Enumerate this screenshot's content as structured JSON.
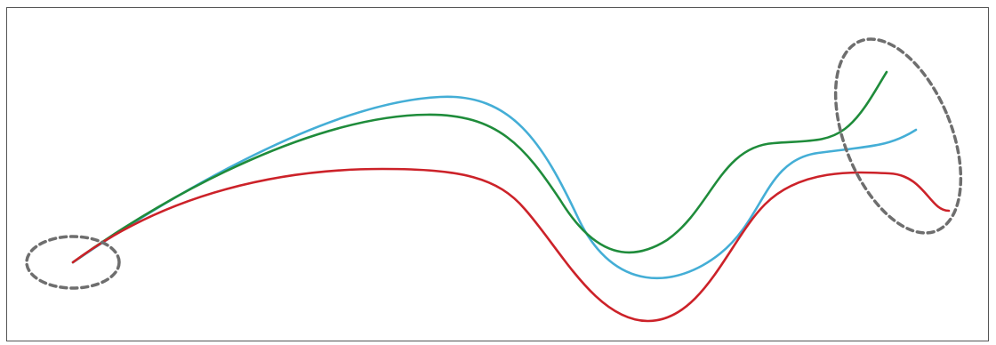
{
  "colors": {
    "frame": "#555555",
    "blue_curve": "#44AED6",
    "green_curve": "#1F8C3B",
    "red_curve": "#CC2229",
    "dashed_markers": "#6E6E6E"
  },
  "curves": [
    {
      "name": "blue-curve",
      "color": "#44AED6"
    },
    {
      "name": "green-curve",
      "color": "#1F8C3B"
    },
    {
      "name": "red-curve",
      "color": "#CC2229"
    }
  ],
  "markers": [
    {
      "name": "start-region-ellipse",
      "style": "dashed"
    },
    {
      "name": "end-region-ellipse",
      "style": "dashed"
    }
  ]
}
